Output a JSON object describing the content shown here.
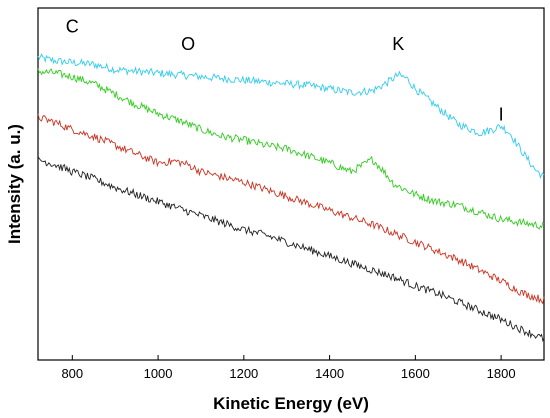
{
  "chart_data": {
    "type": "line",
    "title": "",
    "xlabel": "Kinetic Energy (eV)",
    "ylabel": "Intensity (a. u.)",
    "xlim": [
      720,
      1900
    ],
    "ylim": [
      0,
      1
    ],
    "xticks": [
      800,
      1000,
      1200,
      1400,
      1600,
      1800
    ],
    "grid": false,
    "legend": "none",
    "annotations": [
      {
        "text": "C",
        "x": 800,
        "y": 0.93
      },
      {
        "text": "O",
        "x": 1070,
        "y": 0.88
      },
      {
        "text": "K",
        "x": 1560,
        "y": 0.88
      },
      {
        "text": "I",
        "x": 1800,
        "y": 0.68
      }
    ],
    "series": [
      {
        "color": "#33ccee",
        "x": [
          720,
          760,
          800,
          850,
          900,
          950,
          1000,
          1050,
          1100,
          1150,
          1200,
          1250,
          1300,
          1350,
          1400,
          1450,
          1500,
          1530,
          1560,
          1580,
          1600,
          1650,
          1700,
          1750,
          1780,
          1800,
          1820,
          1850,
          1880,
          1900
        ],
        "y": [
          0.86,
          0.85,
          0.845,
          0.84,
          0.825,
          0.82,
          0.815,
          0.81,
          0.805,
          0.8,
          0.795,
          0.79,
          0.785,
          0.78,
          0.77,
          0.76,
          0.765,
          0.785,
          0.81,
          0.8,
          0.77,
          0.72,
          0.67,
          0.645,
          0.655,
          0.665,
          0.645,
          0.59,
          0.54,
          0.52
        ]
      },
      {
        "color": "#33cc22",
        "x": [
          720,
          760,
          800,
          850,
          900,
          950,
          1000,
          1050,
          1100,
          1150,
          1200,
          1250,
          1300,
          1350,
          1400,
          1450,
          1480,
          1500,
          1520,
          1550,
          1600,
          1650,
          1700,
          1750,
          1800,
          1850,
          1900
        ],
        "y": [
          0.82,
          0.815,
          0.805,
          0.785,
          0.755,
          0.725,
          0.7,
          0.68,
          0.655,
          0.635,
          0.625,
          0.61,
          0.6,
          0.58,
          0.56,
          0.535,
          0.555,
          0.57,
          0.545,
          0.5,
          0.47,
          0.45,
          0.44,
          0.42,
          0.4,
          0.39,
          0.38
        ]
      },
      {
        "color": "#cc3322",
        "x": [
          720,
          760,
          800,
          850,
          900,
          950,
          1000,
          1040,
          1070,
          1100,
          1150,
          1200,
          1250,
          1300,
          1350,
          1400,
          1450,
          1500,
          1550,
          1600,
          1650,
          1700,
          1750,
          1800,
          1850,
          1900
        ],
        "y": [
          0.69,
          0.675,
          0.655,
          0.635,
          0.61,
          0.585,
          0.56,
          0.565,
          0.555,
          0.535,
          0.52,
          0.505,
          0.485,
          0.465,
          0.445,
          0.425,
          0.405,
          0.385,
          0.36,
          0.335,
          0.31,
          0.285,
          0.255,
          0.225,
          0.19,
          0.17
        ]
      },
      {
        "color": "#222222",
        "x": [
          720,
          760,
          800,
          850,
          900,
          950,
          1000,
          1050,
          1100,
          1150,
          1200,
          1250,
          1300,
          1350,
          1400,
          1450,
          1500,
          1550,
          1600,
          1650,
          1700,
          1750,
          1800,
          1850,
          1900
        ],
        "y": [
          0.57,
          0.555,
          0.535,
          0.515,
          0.49,
          0.47,
          0.45,
          0.43,
          0.41,
          0.39,
          0.37,
          0.355,
          0.335,
          0.315,
          0.295,
          0.275,
          0.255,
          0.235,
          0.21,
          0.19,
          0.165,
          0.14,
          0.115,
          0.085,
          0.06
        ]
      }
    ]
  }
}
